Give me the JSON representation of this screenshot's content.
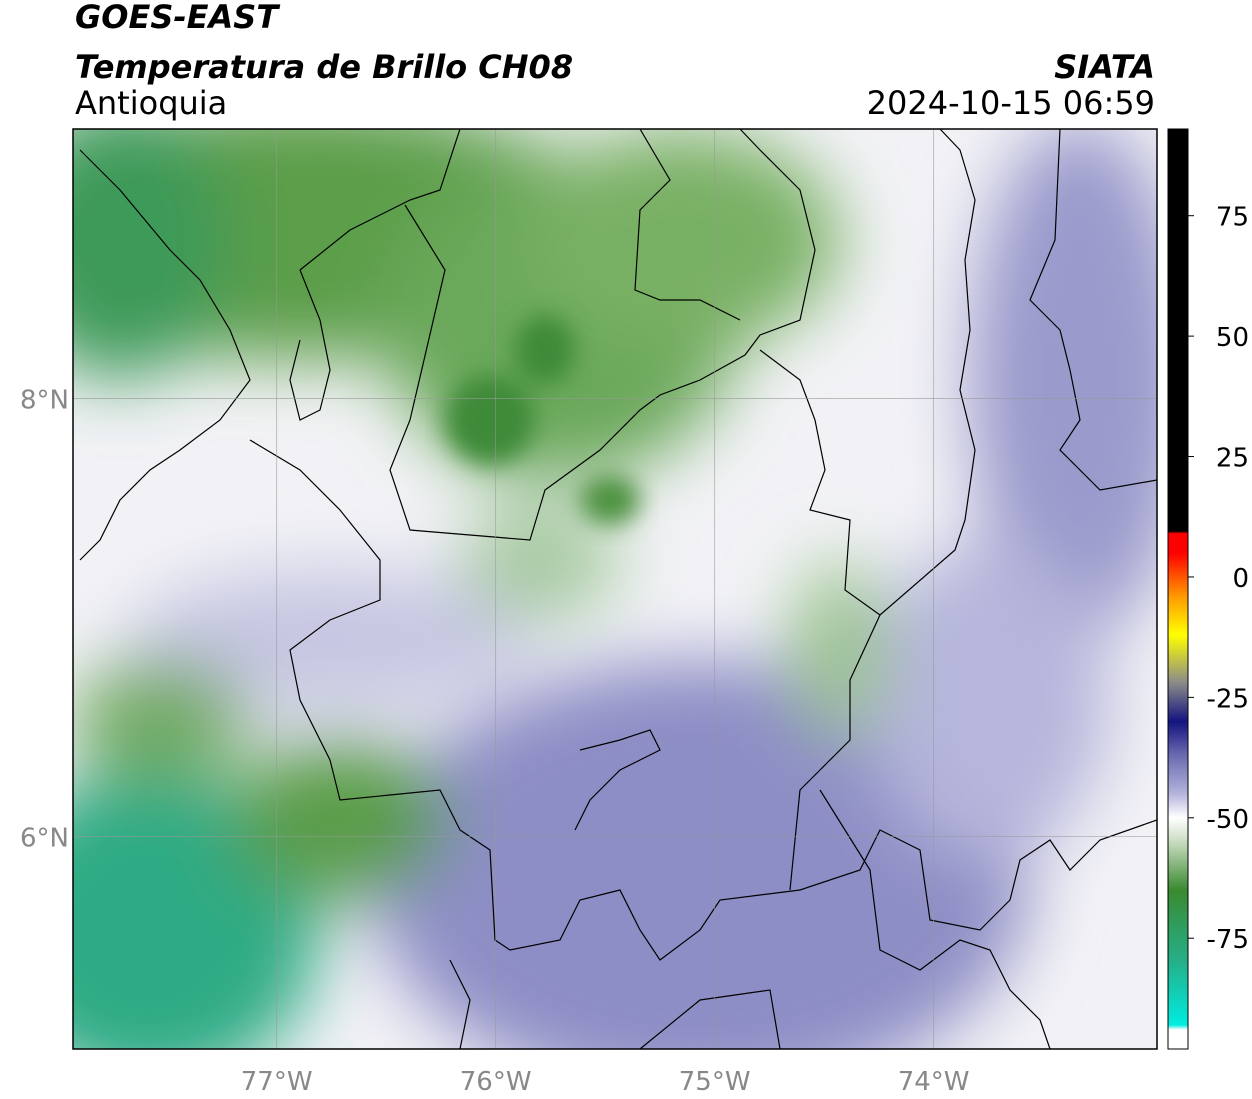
{
  "header": {
    "satellite": "GOES-EAST",
    "product": "Temperatura de Brillo CH08",
    "region": "Antioquia",
    "source": "SIATA",
    "datetime": "2024-10-15 06:59"
  },
  "map": {
    "lon_range": [
      -77.93,
      -72.98
    ],
    "lat_range": [
      5.03,
      9.23
    ],
    "lon_ticks": [
      {
        "value": -77,
        "label": "77°W"
      },
      {
        "value": -76,
        "label": "76°W"
      },
      {
        "value": -75,
        "label": "75°W"
      },
      {
        "value": -74,
        "label": "74°W"
      }
    ],
    "lat_ticks": [
      {
        "value": 8,
        "label": "8°N"
      },
      {
        "value": 6,
        "label": "6°N"
      }
    ],
    "grid": true
  },
  "colorbar": {
    "range": [
      -98,
      93
    ],
    "ticks": [
      75,
      50,
      25,
      0,
      -25,
      -50,
      -75
    ],
    "stops": [
      {
        "value": -98,
        "color": "#ffffff"
      },
      {
        "value": -94,
        "color": "#ffffff"
      },
      {
        "value": -93,
        "color": "#00ece0"
      },
      {
        "value": -80,
        "color": "#25b08a"
      },
      {
        "value": -65,
        "color": "#3a8a30"
      },
      {
        "value": -55,
        "color": "#c8dcc0"
      },
      {
        "value": -50,
        "color": "#ffffff"
      },
      {
        "value": -45,
        "color": "#b4b4dc"
      },
      {
        "value": -37,
        "color": "#6a6ab0"
      },
      {
        "value": -30,
        "color": "#141480"
      },
      {
        "value": -22,
        "color": "#8a8a8a"
      },
      {
        "value": -12,
        "color": "#ffff00"
      },
      {
        "value": -4,
        "color": "#ff9900"
      },
      {
        "value": 5,
        "color": "#ff0000"
      },
      {
        "value": 9,
        "color": "#ff0000"
      },
      {
        "value": 9.5,
        "color": "#000000"
      },
      {
        "value": 93,
        "color": "#000000"
      }
    ]
  }
}
